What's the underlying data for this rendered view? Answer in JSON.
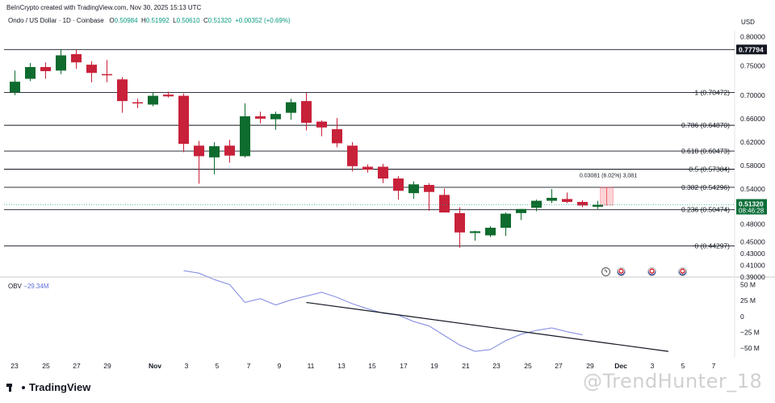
{
  "header": {
    "created": "BeInCrypto created with TradingView.com, Nov 30, 2025 15:13 UTC",
    "symbol": "Ondo / US Dollar · 1D · Coinbase",
    "o_label": "O",
    "o": "0.50984",
    "h_label": "H",
    "h": "0.51992",
    "l_label": "L",
    "l": "0.50610",
    "c_label": "C",
    "c": "0.51320",
    "change": "+0.00352 (+0.69%)"
  },
  "currency": "USD",
  "price_axis_labels": [
    "0.80000",
    "0.75000",
    "0.70000",
    "0.66000",
    "0.62000",
    "0.58000",
    "0.54000",
    "0.48000",
    "0.45000",
    "0.43000",
    "0.41000",
    "0.39000"
  ],
  "current_price": {
    "value": "0.51320",
    "countdown": "08:46:28"
  },
  "high_badge": "0.77794",
  "fib_levels": [
    {
      "label": "1 (0.70472)",
      "price": 0.70472
    },
    {
      "label": "0.786 (0.64870)",
      "price": 0.6487
    },
    {
      "label": "0.618 (0.60473)",
      "price": 0.60473
    },
    {
      "label": "0.5 (0.57384)",
      "price": 0.57384
    },
    {
      "label": "0.382 (0.54296)",
      "price": 0.54296
    },
    {
      "label": "0.236 (0.50474)",
      "price": 0.50474
    },
    {
      "label": "0 (0.44297)",
      "price": 0.44297
    }
  ],
  "measure_label": "0.03081 (6.02%) 3,081",
  "obv": {
    "label": "OBV",
    "value": "−29.34M",
    "axis_labels": [
      "50 M",
      "25 M",
      "0",
      "−25 M",
      "−50 M"
    ]
  },
  "x_axis_labels": [
    "23",
    "25",
    "27",
    "29",
    "Nov",
    "3",
    "5",
    "7",
    "9",
    "11",
    "13",
    "15",
    "17",
    "19",
    "21",
    "23",
    "25",
    "27",
    "29",
    "Dec",
    "3",
    "5",
    "7"
  ],
  "branding": {
    "logo": "TradingView",
    "watermark": "@TrendHunter_18"
  },
  "colors": {
    "up": "#0f6b2e",
    "down": "#c8213a",
    "obv": "#7b86e0",
    "trend": "#131722"
  },
  "chart_data": {
    "type": "candlestick",
    "title": "Ondo / US Dollar · 1D · Coinbase",
    "ylabel": "USD",
    "ylim": [
      0.39,
      0.81
    ],
    "x_start": "Oct 22",
    "x_end": "Nov 30",
    "candles": [
      {
        "o": 0.705,
        "h": 0.742,
        "l": 0.7,
        "c": 0.723
      },
      {
        "o": 0.728,
        "h": 0.755,
        "l": 0.724,
        "c": 0.748
      },
      {
        "o": 0.748,
        "h": 0.756,
        "l": 0.728,
        "c": 0.741
      },
      {
        "o": 0.742,
        "h": 0.778,
        "l": 0.736,
        "c": 0.768
      },
      {
        "o": 0.77,
        "h": 0.778,
        "l": 0.745,
        "c": 0.756
      },
      {
        "o": 0.752,
        "h": 0.758,
        "l": 0.722,
        "c": 0.738
      },
      {
        "o": 0.736,
        "h": 0.76,
        "l": 0.722,
        "c": 0.735
      },
      {
        "o": 0.727,
        "h": 0.731,
        "l": 0.67,
        "c": 0.69
      },
      {
        "o": 0.688,
        "h": 0.694,
        "l": 0.678,
        "c": 0.686
      },
      {
        "o": 0.684,
        "h": 0.705,
        "l": 0.681,
        "c": 0.699
      },
      {
        "o": 0.701,
        "h": 0.706,
        "l": 0.696,
        "c": 0.698
      },
      {
        "o": 0.699,
        "h": 0.703,
        "l": 0.603,
        "c": 0.617
      },
      {
        "o": 0.614,
        "h": 0.622,
        "l": 0.549,
        "c": 0.596
      },
      {
        "o": 0.594,
        "h": 0.62,
        "l": 0.565,
        "c": 0.613
      },
      {
        "o": 0.614,
        "h": 0.624,
        "l": 0.585,
        "c": 0.597
      },
      {
        "o": 0.596,
        "h": 0.686,
        "l": 0.594,
        "c": 0.664
      },
      {
        "o": 0.664,
        "h": 0.672,
        "l": 0.652,
        "c": 0.66
      },
      {
        "o": 0.659,
        "h": 0.672,
        "l": 0.641,
        "c": 0.668
      },
      {
        "o": 0.67,
        "h": 0.694,
        "l": 0.658,
        "c": 0.688
      },
      {
        "o": 0.69,
        "h": 0.704,
        "l": 0.64,
        "c": 0.653
      },
      {
        "o": 0.655,
        "h": 0.657,
        "l": 0.63,
        "c": 0.645
      },
      {
        "o": 0.642,
        "h": 0.661,
        "l": 0.611,
        "c": 0.618
      },
      {
        "o": 0.614,
        "h": 0.62,
        "l": 0.57,
        "c": 0.579
      },
      {
        "o": 0.578,
        "h": 0.582,
        "l": 0.568,
        "c": 0.573
      },
      {
        "o": 0.578,
        "h": 0.583,
        "l": 0.55,
        "c": 0.558
      },
      {
        "o": 0.558,
        "h": 0.562,
        "l": 0.522,
        "c": 0.537
      },
      {
        "o": 0.533,
        "h": 0.553,
        "l": 0.523,
        "c": 0.548
      },
      {
        "o": 0.547,
        "h": 0.55,
        "l": 0.503,
        "c": 0.535
      },
      {
        "o": 0.53,
        "h": 0.541,
        "l": 0.5,
        "c": 0.5
      },
      {
        "o": 0.499,
        "h": 0.509,
        "l": 0.44,
        "c": 0.466
      },
      {
        "o": 0.465,
        "h": 0.469,
        "l": 0.452,
        "c": 0.468
      },
      {
        "o": 0.461,
        "h": 0.477,
        "l": 0.458,
        "c": 0.474
      },
      {
        "o": 0.474,
        "h": 0.5,
        "l": 0.46,
        "c": 0.498
      },
      {
        "o": 0.499,
        "h": 0.506,
        "l": 0.487,
        "c": 0.506
      },
      {
        "o": 0.508,
        "h": 0.522,
        "l": 0.502,
        "c": 0.52
      },
      {
        "o": 0.52,
        "h": 0.54,
        "l": 0.516,
        "c": 0.525
      },
      {
        "o": 0.523,
        "h": 0.534,
        "l": 0.516,
        "c": 0.518
      },
      {
        "o": 0.518,
        "h": 0.521,
        "l": 0.509,
        "c": 0.512
      },
      {
        "o": 0.5098,
        "h": 0.5199,
        "l": 0.5061,
        "c": 0.5132
      }
    ],
    "obv_series": [
      72,
      68,
      58,
      50,
      22,
      28,
      18,
      26,
      32,
      38,
      30,
      20,
      12,
      5,
      2,
      -8,
      -15,
      -30,
      -45,
      -55,
      -52,
      -38,
      -28,
      -22,
      -18,
      -24,
      -29
    ],
    "obv_ylim": [
      -65,
      62
    ]
  }
}
